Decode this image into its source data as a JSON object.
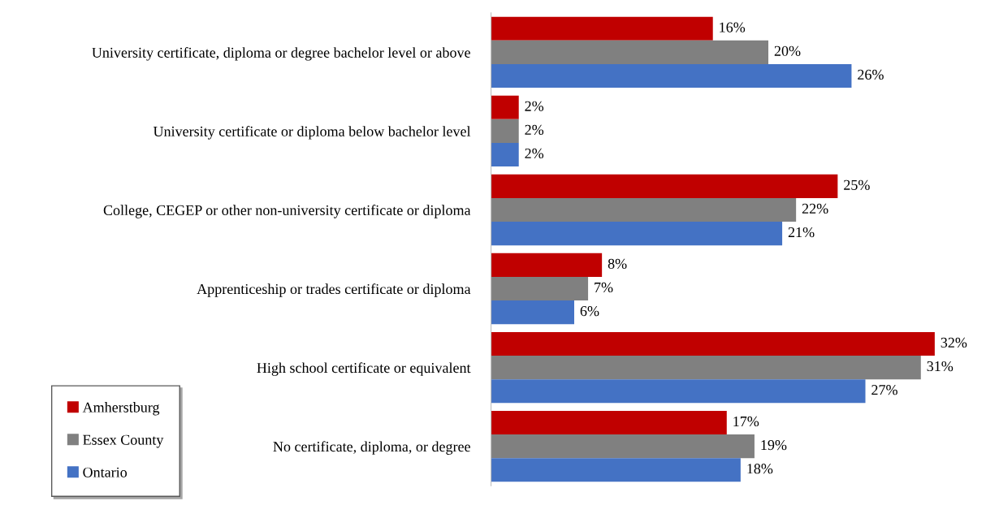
{
  "chart_data": {
    "type": "bar",
    "orientation": "horizontal",
    "categories": [
      "University certificate, diploma or degree bachelor level or above",
      "University certificate or diploma below bachelor level",
      "College, CEGEP or other non-university certificate or diploma",
      "Apprenticeship or trades certificate or diploma",
      "High school certificate or equivalent",
      "No certificate, diploma, or degree"
    ],
    "series": [
      {
        "name": "Amherstburg",
        "color": "#c00000",
        "values": [
          16,
          2,
          25,
          8,
          32,
          17
        ],
        "value_labels": [
          "16%",
          "2%",
          "25%",
          "8%",
          "32%",
          "17%"
        ]
      },
      {
        "name": "Essex County",
        "color": "#808080",
        "values": [
          20,
          2,
          22,
          7,
          31,
          19
        ],
        "value_labels": [
          "20%",
          "2%",
          "22%",
          "7%",
          "31%",
          "19%"
        ]
      },
      {
        "name": "Ontario",
        "color": "#4472c4",
        "values": [
          26,
          2,
          21,
          6,
          27,
          18
        ],
        "value_labels": [
          "26%",
          "2%",
          "21%",
          "6%",
          "27%",
          "18%"
        ]
      }
    ],
    "legend": "bottom left",
    "grid": false
  }
}
